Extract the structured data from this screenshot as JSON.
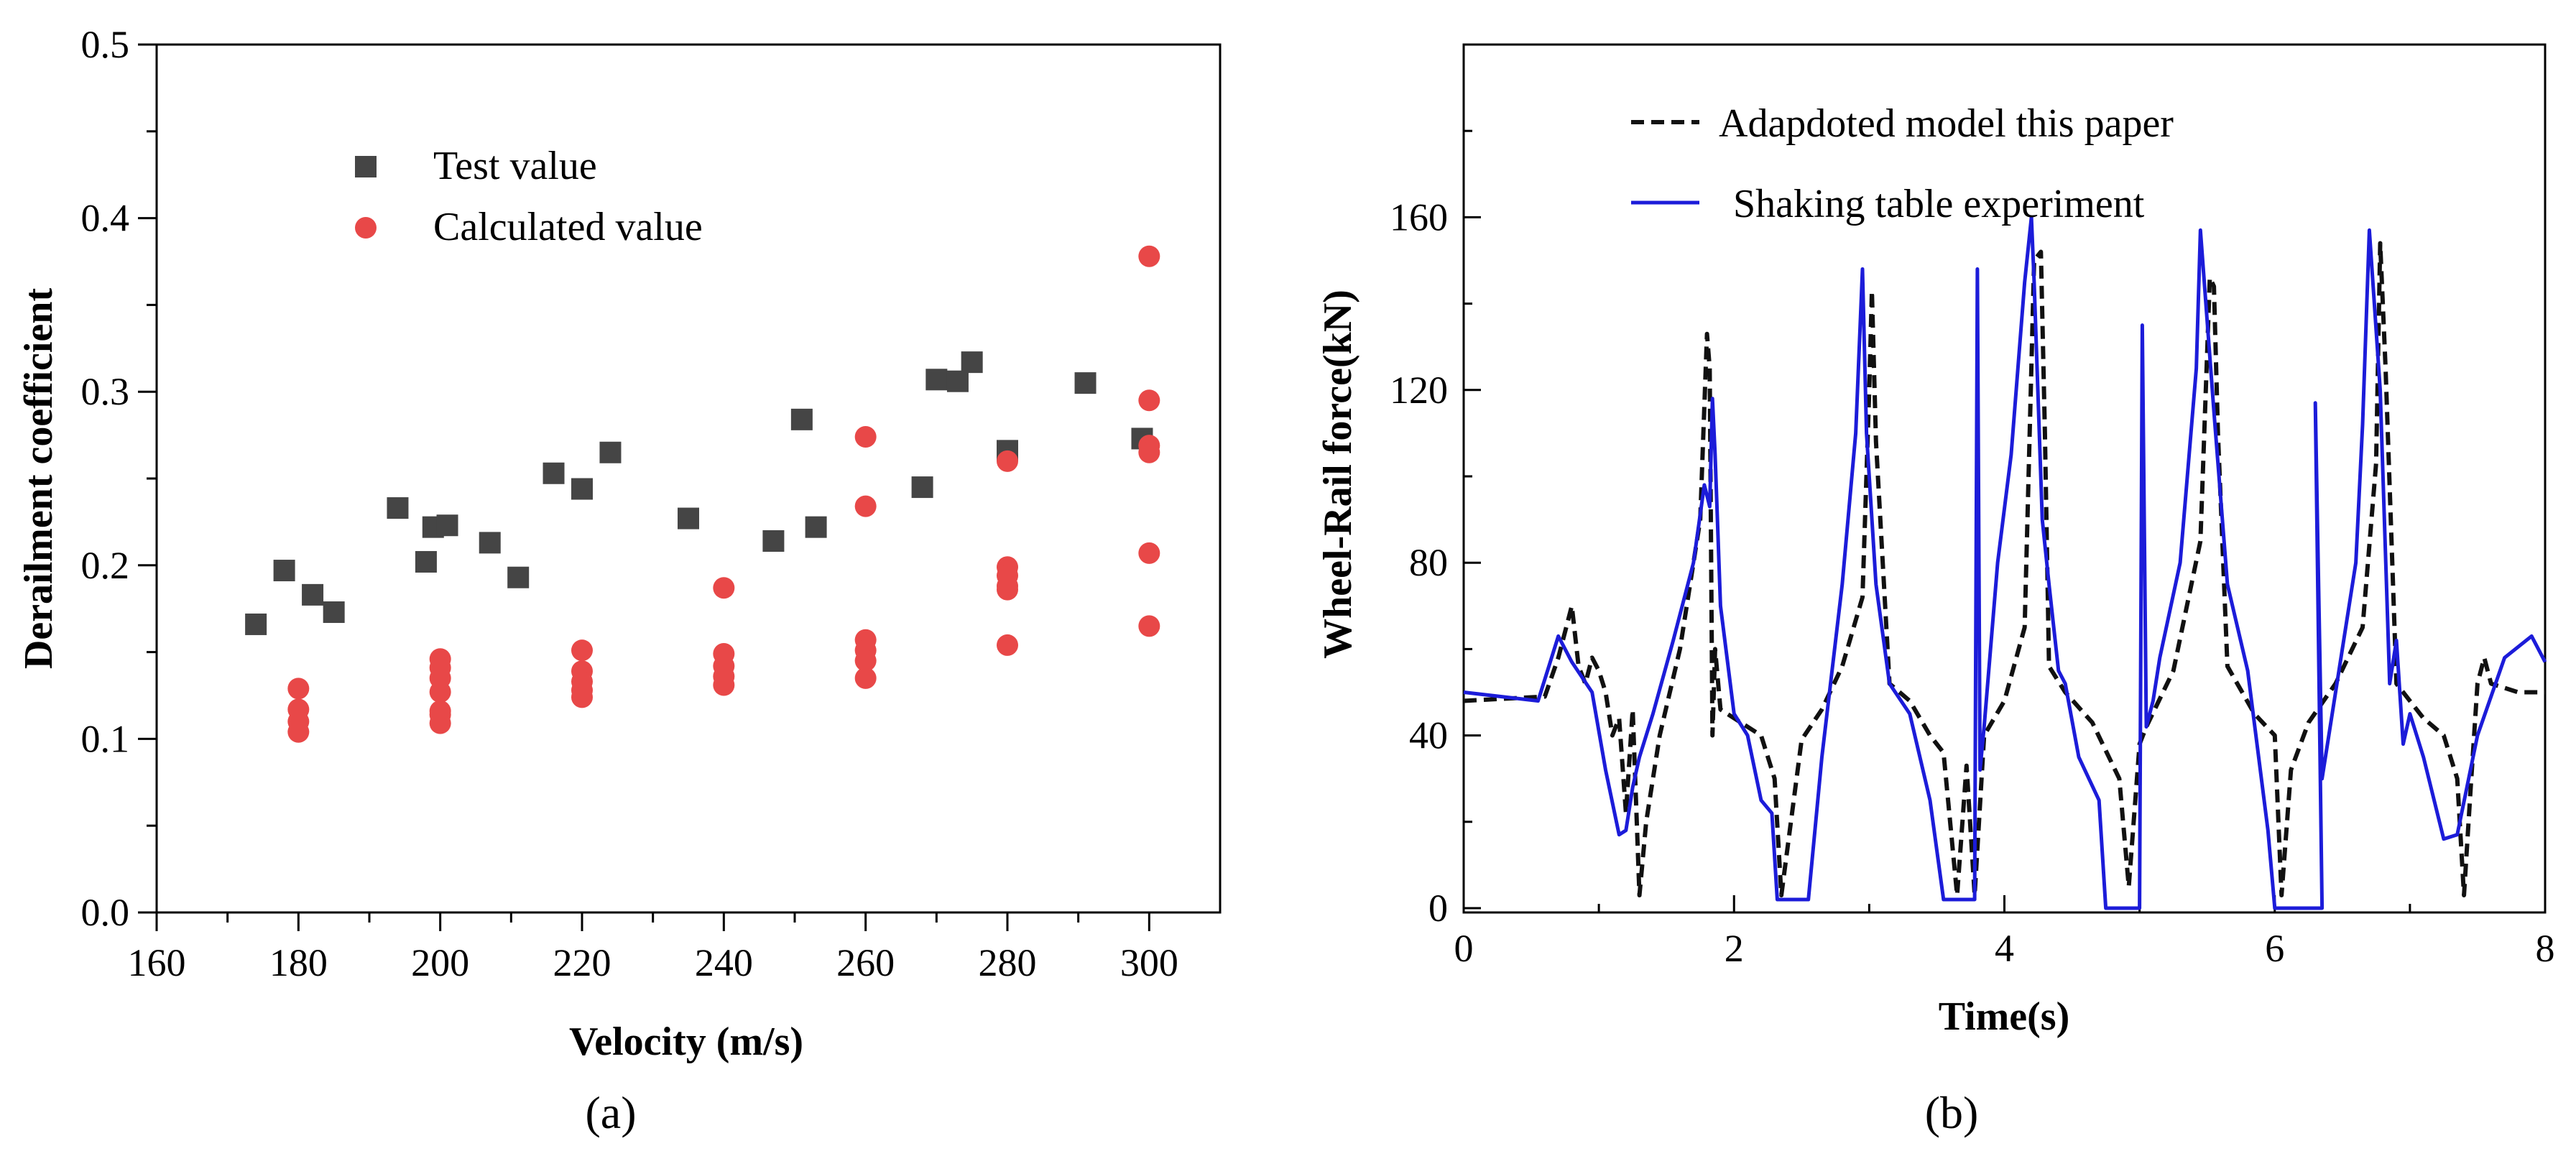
{
  "colors": {
    "test": "#454545",
    "calculated": "#E84848",
    "model": "#111111",
    "experiment": "#1C1CD9"
  },
  "chart_data": [
    {
      "type": "scatter",
      "panel_label": "(a)",
      "xlabel": "Velocity (m/s)",
      "ylabel": "Derailment coefficient",
      "xlim": [
        160,
        310
      ],
      "ylim": [
        0.0,
        0.5
      ],
      "xticks": [
        "160",
        "180",
        "200",
        "220",
        "240",
        "260",
        "280",
        "300"
      ],
      "yticks": [
        "0.0",
        "0.1",
        "0.2",
        "0.3",
        "0.4",
        "0.5"
      ],
      "legend_position": "top-left",
      "series": [
        {
          "name": "Test value",
          "marker": "square",
          "x": [
            174,
            178,
            182,
            185,
            194,
            198,
            199,
            201,
            207,
            211,
            216,
            220,
            224,
            235,
            247,
            251,
            253,
            268,
            270,
            273,
            275,
            280,
            291,
            299
          ],
          "y": [
            0.166,
            0.197,
            0.183,
            0.173,
            0.233,
            0.202,
            0.222,
            0.223,
            0.213,
            0.193,
            0.253,
            0.244,
            0.265,
            0.227,
            0.214,
            0.284,
            0.222,
            0.245,
            0.307,
            0.306,
            0.317,
            0.266,
            0.305,
            0.273
          ]
        },
        {
          "name": "Calculated value",
          "marker": "circle",
          "x": [
            180,
            180,
            180,
            180,
            200,
            200,
            200,
            200,
            200,
            200,
            200,
            220,
            220,
            220,
            220,
            220,
            240,
            240,
            240,
            240,
            240,
            260,
            260,
            260,
            260,
            260,
            260,
            280,
            280,
            280,
            280,
            280,
            280,
            300,
            300,
            300,
            300,
            300,
            300
          ],
          "y": [
            0.129,
            0.117,
            0.11,
            0.104,
            0.146,
            0.141,
            0.135,
            0.127,
            0.116,
            0.109,
            0.114,
            0.151,
            0.139,
            0.133,
            0.128,
            0.124,
            0.187,
            0.149,
            0.142,
            0.136,
            0.131,
            0.274,
            0.234,
            0.157,
            0.151,
            0.145,
            0.135,
            0.26,
            0.199,
            0.194,
            0.188,
            0.154,
            0.186,
            0.378,
            0.295,
            0.269,
            0.265,
            0.207,
            0.165
          ]
        }
      ]
    },
    {
      "type": "line",
      "panel_label": "(b)",
      "xlabel": "Time(s)",
      "ylabel": "Wheel-Rail force(kN)",
      "xlim": [
        0,
        8
      ],
      "ylim": [
        0,
        200
      ],
      "xticks": [
        "0",
        "2",
        "4",
        "6",
        "8"
      ],
      "yticks": [
        "0",
        "40",
        "80",
        "120",
        "160"
      ],
      "legend_position": "top-center",
      "series": [
        {
          "name": "Adapdoted model this paper",
          "style": "dashed",
          "x": [
            0,
            0.6,
            0.7,
            0.8,
            0.85,
            0.9,
            0.95,
            1.0,
            1.05,
            1.1,
            1.15,
            1.2,
            1.25,
            1.3,
            1.35,
            1.45,
            1.6,
            1.75,
            1.8,
            1.82,
            1.84,
            1.86,
            1.9,
            2.0,
            2.2,
            2.3,
            2.35,
            2.4,
            2.5,
            2.65,
            2.8,
            2.95,
            3.0,
            3.02,
            3.05,
            3.15,
            3.3,
            3.45,
            3.55,
            3.65,
            3.72,
            3.78,
            3.85,
            4.0,
            4.15,
            4.22,
            4.27,
            4.3,
            4.33,
            4.45,
            4.65,
            4.85,
            4.92,
            5.0,
            5.05,
            5.25,
            5.45,
            5.52,
            5.55,
            5.58,
            5.65,
            5.85,
            6.0,
            6.05,
            6.12,
            6.25,
            6.45,
            6.65,
            6.75,
            6.78,
            6.82,
            6.9,
            7.1,
            7.25,
            7.35,
            7.4,
            7.45,
            7.5,
            7.55,
            7.6,
            7.8,
            8.0
          ],
          "y": [
            48,
            49,
            58,
            70,
            56,
            52,
            58,
            55,
            50,
            40,
            44,
            22,
            46,
            3,
            20,
            40,
            60,
            90,
            133,
            125,
            40,
            60,
            46,
            44,
            40,
            30,
            3,
            15,
            39,
            46,
            56,
            72,
            120,
            143,
            108,
            52,
            48,
            40,
            36,
            3,
            33,
            3,
            40,
            48,
            65,
            150,
            152,
            110,
            56,
            50,
            43,
            30,
            5,
            38,
            42,
            55,
            85,
            146,
            144,
            110,
            56,
            45,
            40,
            3,
            32,
            43,
            52,
            65,
            103,
            154,
            125,
            52,
            44,
            40,
            30,
            3,
            28,
            52,
            58,
            52,
            50,
            50
          ]
        },
        {
          "name": "Shaking table experiment",
          "style": "solid",
          "x": [
            0,
            0.55,
            0.7,
            0.8,
            0.95,
            1.05,
            1.15,
            1.2,
            1.25,
            1.3,
            1.4,
            1.55,
            1.7,
            1.78,
            1.82,
            1.84,
            1.86,
            1.9,
            2.0,
            2.1,
            2.2,
            2.28,
            2.32,
            2.55,
            2.65,
            2.8,
            2.9,
            2.95,
            2.98,
            3.05,
            3.15,
            3.3,
            3.45,
            3.55,
            3.78,
            3.8,
            3.82,
            3.85,
            3.95,
            4.05,
            4.15,
            4.2,
            4.22,
            4.28,
            4.33,
            4.4,
            4.45,
            4.55,
            4.7,
            4.75,
            5.0,
            5.02,
            5.05,
            5.1,
            5.15,
            5.3,
            5.42,
            5.45,
            5.55,
            5.65,
            5.8,
            5.95,
            6.0,
            6.35,
            6.3,
            6.35,
            6.45,
            6.6,
            6.65,
            6.7,
            6.78,
            6.85,
            6.9,
            6.95,
            7.0,
            7.1,
            7.25,
            7.35,
            7.5,
            7.7,
            7.9,
            8.0
          ],
          "y": [
            50,
            48,
            63,
            57,
            50,
            32,
            17,
            18,
            28,
            35,
            45,
            62,
            80,
            98,
            93,
            118,
            105,
            70,
            45,
            40,
            25,
            22,
            2,
            2,
            35,
            75,
            110,
            148,
            110,
            75,
            52,
            45,
            25,
            2,
            2,
            148,
            32,
            42,
            80,
            105,
            145,
            160,
            145,
            90,
            75,
            55,
            52,
            35,
            25,
            0,
            0,
            135,
            42,
            48,
            58,
            80,
            125,
            157,
            115,
            75,
            55,
            18,
            0,
            0,
            117,
            30,
            50,
            80,
            112,
            157,
            120,
            52,
            62,
            38,
            45,
            35,
            16,
            17,
            40,
            58,
            63,
            57
          ]
        }
      ]
    }
  ]
}
